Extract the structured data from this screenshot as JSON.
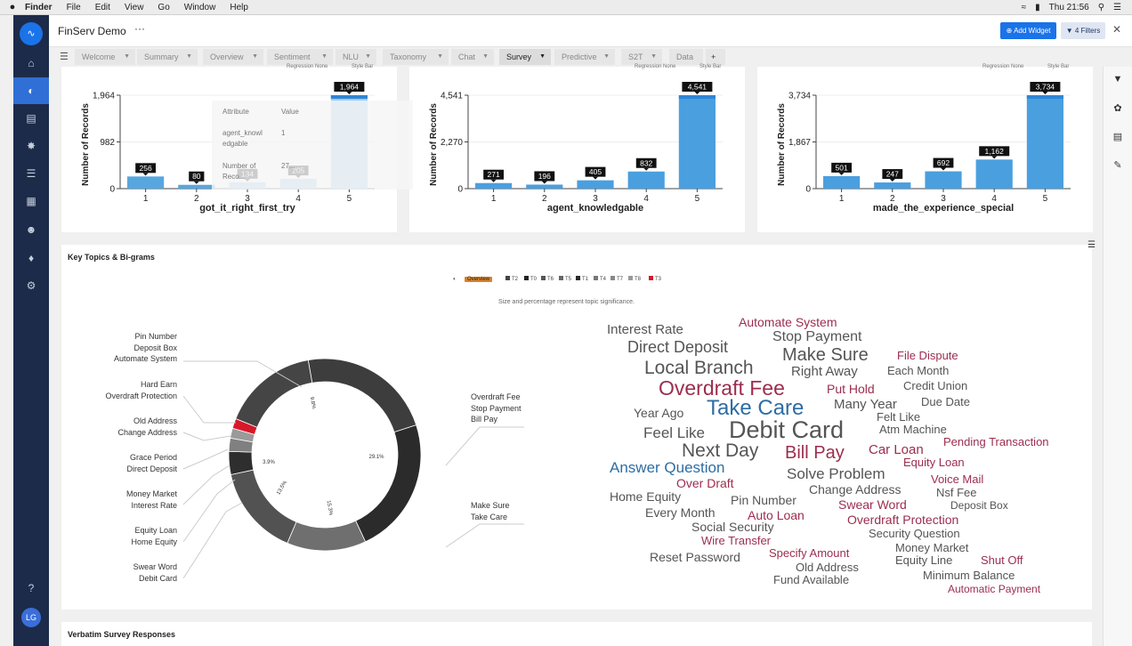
{
  "menubar": {
    "app": "Finder",
    "items": [
      "File",
      "Edit",
      "View",
      "Go",
      "Window",
      "Help"
    ],
    "clock": "Thu 21:56"
  },
  "sidebar": {
    "logo_icon": "waveform-logo-icon",
    "icons": [
      "home-icon",
      "dashboard-icon",
      "database-icon",
      "settings-gear-icon",
      "list-icon",
      "grid-icon",
      "users-icon",
      "bell-icon",
      "cog-icon"
    ],
    "active_index": 1,
    "avatar_initials": "LG"
  },
  "header": {
    "title": "FinServ Demo",
    "more": "···",
    "add_widget": "Add Widget",
    "filters": "4 Filters"
  },
  "tabs": [
    "Welcome",
    "Summary",
    "Overview",
    "Sentiment",
    "NLU",
    "Taxonomy",
    "Chat",
    "Survey",
    "Predictive",
    "S2T",
    "Data"
  ],
  "active_tab": "Survey",
  "add_tab": "+",
  "regression_note": "Regression None",
  "style_note": "Style Bar",
  "chart_data": [
    {
      "type": "bar",
      "categories": [
        "1",
        "2",
        "3",
        "4",
        "5"
      ],
      "values": [
        256,
        80,
        134,
        205,
        1964
      ],
      "xlabel": "got_it_right_first_try",
      "ylabel": "Number of Records",
      "yticks": [
        "0",
        "982",
        "1,964"
      ],
      "ylim": [
        0,
        1964
      ],
      "data_labels": [
        "256",
        "80",
        "134",
        "205",
        "1,964"
      ]
    },
    {
      "type": "bar",
      "categories": [
        "1",
        "2",
        "3",
        "4",
        "5"
      ],
      "values": [
        271,
        196,
        405,
        832,
        4541
      ],
      "xlabel": "agent_knowledgable",
      "ylabel": "Number of Records",
      "yticks": [
        "0",
        "2,270",
        "4,541"
      ],
      "ylim": [
        0,
        4541
      ],
      "data_labels": [
        "271",
        "196",
        "405",
        "832",
        "4,541"
      ]
    },
    {
      "type": "bar",
      "categories": [
        "1",
        "2",
        "3",
        "4",
        "5"
      ],
      "values": [
        501,
        247,
        692,
        1162,
        3734
      ],
      "xlabel": "made_the_experience_special",
      "ylabel": "Number of Records",
      "yticks": [
        "0",
        "1,867",
        "3,734"
      ],
      "ylim": [
        0,
        3734
      ],
      "data_labels": [
        "501",
        "247",
        "692",
        "1,162",
        "3,734"
      ]
    },
    {
      "type": "pie",
      "donut": true,
      "percent_labels": [
        "29.1%",
        "15.3%",
        "13.5%",
        "3.9%",
        "9.8%"
      ]
    }
  ],
  "tooltip": {
    "col_attribute": "Attribute",
    "col_value": "Value",
    "row1_attr_a": "agent_knowl",
    "row1_attr_b": "edgable",
    "row1_value": "1",
    "row2_attr_a": "Number of",
    "row2_attr_b": "Reco...",
    "row2_value": "27..."
  },
  "topics": {
    "title": "Key Topics & Bi-grams",
    "legend": [
      {
        "label": "Overview",
        "color": "#d9822b"
      },
      {
        "label": "T2",
        "color": "#444444"
      },
      {
        "label": "T0",
        "color": "#222222"
      },
      {
        "label": "T6",
        "color": "#555555"
      },
      {
        "label": "T5",
        "color": "#666666"
      },
      {
        "label": "T1",
        "color": "#2a2a2a"
      },
      {
        "label": "T4",
        "color": "#777777"
      },
      {
        "label": "T7",
        "color": "#888888"
      },
      {
        "label": "T8",
        "color": "#999999"
      },
      {
        "label": "T3",
        "color": "#d6182a"
      }
    ],
    "subtitle": "Size and percentage represent topic significance.",
    "labels_left": [
      [
        "Pin Number",
        "Deposit Box",
        "Automate System"
      ],
      [
        "Hard Earn",
        "Overdraft Protection"
      ],
      [
        "Old Address",
        "Change Address"
      ],
      [
        "Grace Period",
        "Direct Deposit"
      ],
      [
        "Money Market",
        "Interest Rate"
      ],
      [
        "Equity Loan",
        "Home Equity"
      ],
      [
        "Swear Word",
        "Debit Card"
      ]
    ],
    "labels_right": [
      [
        "Overdraft Fee",
        "Stop Payment",
        "Bill Pay"
      ],
      [
        "Make Sure",
        "Take Care"
      ]
    ]
  },
  "wordcloud": [
    {
      "text": "Automate System",
      "color": "#9c2d4f"
    },
    {
      "text": "Interest Rate",
      "color": "#555555"
    },
    {
      "text": "Stop Payment",
      "color": "#555555"
    },
    {
      "text": "Direct Deposit",
      "color": "#555555"
    },
    {
      "text": "Make Sure",
      "color": "#555555"
    },
    {
      "text": "File Dispute",
      "color": "#9c2d4f"
    },
    {
      "text": "Local Branch",
      "color": "#555555"
    },
    {
      "text": "Right Away",
      "color": "#555555"
    },
    {
      "text": "Each Month",
      "color": "#555555"
    },
    {
      "text": "Overdraft Fee",
      "color": "#9c2d4f"
    },
    {
      "text": "Put Hold",
      "color": "#9c2d4f"
    },
    {
      "text": "Credit Union",
      "color": "#555555"
    },
    {
      "text": "Many Year",
      "color": "#555555"
    },
    {
      "text": "Due Date",
      "color": "#555555"
    },
    {
      "text": "Year Ago",
      "color": "#555555"
    },
    {
      "text": "Take Care",
      "color": "#2e6da4"
    },
    {
      "text": "Felt Like",
      "color": "#555555"
    },
    {
      "text": "Atm Machine",
      "color": "#555555"
    },
    {
      "text": "Feel Like",
      "color": "#555555"
    },
    {
      "text": "Debit Card",
      "color": "#555555"
    },
    {
      "text": "Pending Transaction",
      "color": "#9c2d4f"
    },
    {
      "text": "Next Day",
      "color": "#555555"
    },
    {
      "text": "Car Loan",
      "color": "#9c2d4f"
    },
    {
      "text": "Bill Pay",
      "color": "#9c2d4f"
    },
    {
      "text": "Equity Loan",
      "color": "#9c2d4f"
    },
    {
      "text": "Answer Question",
      "color": "#2e6da4"
    },
    {
      "text": "Solve Problem",
      "color": "#555555"
    },
    {
      "text": "Over Draft",
      "color": "#9c2d4f"
    },
    {
      "text": "Voice Mail",
      "color": "#9c2d4f"
    },
    {
      "text": "Change Address",
      "color": "#555555"
    },
    {
      "text": "Nsf Fee",
      "color": "#555555"
    },
    {
      "text": "Home Equity",
      "color": "#555555"
    },
    {
      "text": "Pin Number",
      "color": "#555555"
    },
    {
      "text": "Swear Word",
      "color": "#9c2d4f"
    },
    {
      "text": "Deposit Box",
      "color": "#555555"
    },
    {
      "text": "Every Month",
      "color": "#555555"
    },
    {
      "text": "Auto Loan",
      "color": "#9c2d4f"
    },
    {
      "text": "Overdraft Protection",
      "color": "#9c2d4f"
    },
    {
      "text": "Social Security",
      "color": "#555555"
    },
    {
      "text": "Security Question",
      "color": "#555555"
    },
    {
      "text": "Wire Transfer",
      "color": "#9c2d4f"
    },
    {
      "text": "Money Market",
      "color": "#555555"
    },
    {
      "text": "Specify Amount",
      "color": "#9c2d4f"
    },
    {
      "text": "Equity Line",
      "color": "#555555"
    },
    {
      "text": "Shut Off",
      "color": "#9c2d4f"
    },
    {
      "text": "Reset Password",
      "color": "#555555"
    },
    {
      "text": "Old Address",
      "color": "#555555"
    },
    {
      "text": "Minimum Balance",
      "color": "#555555"
    },
    {
      "text": "Fund Available",
      "color": "#555555"
    },
    {
      "text": "Automatic Payment",
      "color": "#9c2d4f"
    }
  ],
  "verbatim": {
    "title": "Verbatim Survey Responses"
  }
}
